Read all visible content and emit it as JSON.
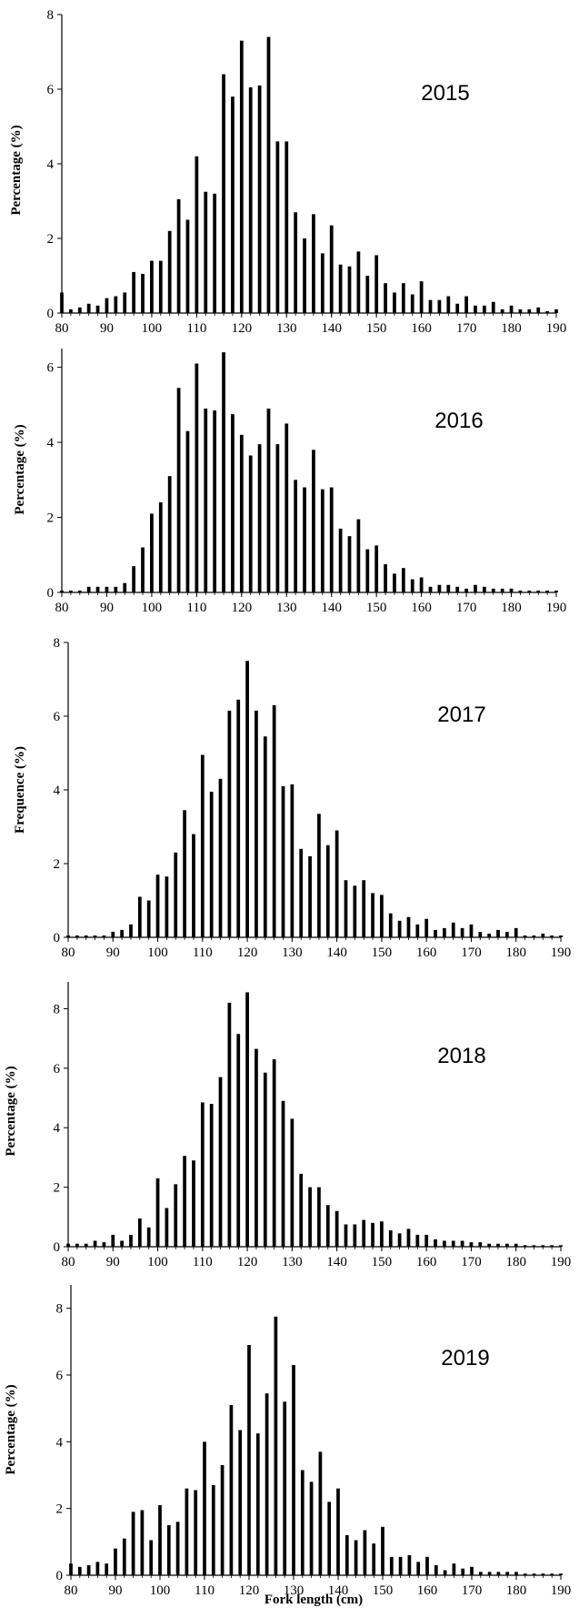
{
  "chart_data": [
    {
      "type": "bar",
      "annotation": "2015",
      "ylabel": "Percentage (%)",
      "xlabel": "",
      "xlim": [
        80,
        190
      ],
      "ylim": [
        0,
        8
      ],
      "x_ticks": [
        80,
        90,
        100,
        110,
        120,
        130,
        140,
        150,
        160,
        170,
        180,
        190
      ],
      "y_ticks": [
        0,
        2,
        4,
        6,
        8
      ],
      "x": [
        80,
        82,
        84,
        86,
        88,
        90,
        92,
        94,
        96,
        98,
        100,
        102,
        104,
        106,
        108,
        110,
        112,
        114,
        116,
        118,
        120,
        122,
        124,
        126,
        128,
        130,
        132,
        134,
        136,
        138,
        140,
        142,
        144,
        146,
        148,
        150,
        152,
        154,
        156,
        158,
        160,
        162,
        164,
        166,
        168,
        170,
        172,
        174,
        176,
        178,
        180,
        182,
        184,
        186,
        188,
        190
      ],
      "values": [
        0.55,
        0.1,
        0.15,
        0.25,
        0.2,
        0.4,
        0.45,
        0.55,
        1.1,
        1.05,
        1.4,
        1.4,
        2.2,
        3.05,
        2.5,
        4.2,
        3.25,
        3.2,
        6.4,
        5.8,
        7.3,
        6.05,
        6.1,
        7.4,
        4.6,
        4.6,
        2.7,
        2.0,
        2.65,
        1.6,
        2.35,
        1.3,
        1.25,
        1.65,
        1.0,
        1.55,
        0.8,
        0.55,
        0.8,
        0.5,
        0.85,
        0.35,
        0.35,
        0.45,
        0.25,
        0.45,
        0.2,
        0.2,
        0.3,
        0.1,
        0.2,
        0.1,
        0.1,
        0.15,
        0.05,
        0.1
      ],
      "grid": false
    },
    {
      "type": "bar",
      "annotation": "2016",
      "ylabel": "Percentage (%)",
      "xlabel": "",
      "xlim": [
        80,
        190
      ],
      "ylim": [
        0,
        6.5
      ],
      "x_ticks": [
        80,
        90,
        100,
        110,
        120,
        130,
        140,
        150,
        160,
        170,
        180,
        190
      ],
      "y_ticks": [
        0,
        2,
        4,
        6
      ],
      "x": [
        80,
        82,
        84,
        86,
        88,
        90,
        92,
        94,
        96,
        98,
        100,
        102,
        104,
        106,
        108,
        110,
        112,
        114,
        116,
        118,
        120,
        122,
        124,
        126,
        128,
        130,
        132,
        134,
        136,
        138,
        140,
        142,
        144,
        146,
        148,
        150,
        152,
        154,
        156,
        158,
        160,
        162,
        164,
        166,
        168,
        170,
        172,
        174,
        176,
        178,
        180,
        182,
        184,
        186,
        188,
        190
      ],
      "values": [
        0.05,
        0.05,
        0.05,
        0.15,
        0.15,
        0.15,
        0.15,
        0.25,
        0.7,
        1.2,
        2.1,
        2.4,
        3.1,
        5.45,
        4.3,
        6.1,
        4.9,
        4.85,
        6.4,
        4.75,
        4.2,
        3.65,
        3.95,
        4.9,
        3.95,
        4.5,
        3.0,
        2.8,
        3.8,
        2.75,
        2.8,
        1.7,
        1.5,
        1.95,
        1.15,
        1.25,
        0.75,
        0.5,
        0.65,
        0.35,
        0.4,
        0.15,
        0.2,
        0.2,
        0.15,
        0.1,
        0.2,
        0.15,
        0.1,
        0.1,
        0.1,
        0.05,
        0.05,
        0.05,
        0.05,
        0.05
      ],
      "grid": false
    },
    {
      "type": "bar",
      "annotation": "2017",
      "ylabel": "Frequence (%)",
      "xlabel": "",
      "xlim": [
        80,
        190
      ],
      "ylim": [
        0,
        8
      ],
      "x_ticks": [
        80,
        90,
        100,
        110,
        120,
        130,
        140,
        150,
        160,
        170,
        180,
        190
      ],
      "y_ticks": [
        0,
        2,
        4,
        6,
        8
      ],
      "x": [
        80,
        82,
        84,
        86,
        88,
        90,
        92,
        94,
        96,
        98,
        100,
        102,
        104,
        106,
        108,
        110,
        112,
        114,
        116,
        118,
        120,
        122,
        124,
        126,
        128,
        130,
        132,
        134,
        136,
        138,
        140,
        142,
        144,
        146,
        148,
        150,
        152,
        154,
        156,
        158,
        160,
        162,
        164,
        166,
        168,
        170,
        172,
        174,
        176,
        178,
        180,
        182,
        184,
        186,
        188,
        190
      ],
      "values": [
        0.05,
        0.05,
        0.05,
        0.05,
        0.05,
        0.15,
        0.2,
        0.35,
        1.1,
        1.0,
        1.7,
        1.65,
        2.3,
        3.45,
        2.8,
        4.95,
        3.95,
        4.3,
        6.15,
        6.45,
        7.5,
        6.15,
        5.45,
        6.3,
        4.1,
        4.15,
        2.4,
        2.2,
        3.35,
        2.5,
        2.9,
        1.55,
        1.4,
        1.55,
        1.2,
        1.15,
        0.65,
        0.45,
        0.55,
        0.35,
        0.5,
        0.2,
        0.25,
        0.4,
        0.25,
        0.35,
        0.15,
        0.1,
        0.2,
        0.15,
        0.25,
        0.05,
        0.05,
        0.1,
        0.05,
        0.05
      ],
      "grid": false
    },
    {
      "type": "bar",
      "annotation": "2018",
      "ylabel": "Percentage (%)",
      "xlabel": "",
      "xlim": [
        80,
        190
      ],
      "ylim": [
        0,
        8.9
      ],
      "x_ticks": [
        80,
        90,
        100,
        110,
        120,
        130,
        140,
        150,
        160,
        170,
        180,
        190
      ],
      "y_ticks": [
        0,
        2,
        4,
        6,
        8
      ],
      "x": [
        80,
        82,
        84,
        86,
        88,
        90,
        92,
        94,
        96,
        98,
        100,
        102,
        104,
        106,
        108,
        110,
        112,
        114,
        116,
        118,
        120,
        122,
        124,
        126,
        128,
        130,
        132,
        134,
        136,
        138,
        140,
        142,
        144,
        146,
        148,
        150,
        152,
        154,
        156,
        158,
        160,
        162,
        164,
        166,
        168,
        170,
        172,
        174,
        176,
        178,
        180,
        182,
        184,
        186,
        188,
        190
      ],
      "values": [
        0.1,
        0.1,
        0.1,
        0.2,
        0.15,
        0.4,
        0.2,
        0.4,
        0.95,
        0.65,
        2.3,
        1.3,
        2.1,
        3.05,
        2.9,
        4.85,
        4.8,
        5.7,
        8.2,
        7.15,
        8.55,
        6.65,
        5.85,
        6.3,
        4.9,
        4.3,
        2.45,
        2.0,
        2.0,
        1.4,
        1.2,
        0.75,
        0.75,
        0.9,
        0.8,
        0.85,
        0.55,
        0.45,
        0.6,
        0.4,
        0.4,
        0.25,
        0.2,
        0.2,
        0.2,
        0.15,
        0.15,
        0.1,
        0.1,
        0.1,
        0.1,
        0.05,
        0.05,
        0.05,
        0.05,
        0.05
      ],
      "grid": false
    },
    {
      "type": "bar",
      "annotation": "2019",
      "ylabel": "Percentage (%)",
      "xlabel": "Fork length (cm)",
      "xlim": [
        80,
        190
      ],
      "ylim": [
        0,
        8.7
      ],
      "x_ticks": [
        80,
        90,
        100,
        110,
        120,
        130,
        140,
        150,
        160,
        170,
        180,
        190
      ],
      "y_ticks": [
        0,
        2,
        4,
        6,
        8
      ],
      "x": [
        80,
        82,
        84,
        86,
        88,
        90,
        92,
        94,
        96,
        98,
        100,
        102,
        104,
        106,
        108,
        110,
        112,
        114,
        116,
        118,
        120,
        122,
        124,
        126,
        128,
        130,
        132,
        134,
        136,
        138,
        140,
        142,
        144,
        146,
        148,
        150,
        152,
        154,
        156,
        158,
        160,
        162,
        164,
        166,
        168,
        170,
        172,
        174,
        176,
        178,
        180,
        182,
        184,
        186,
        188,
        190
      ],
      "values": [
        0.35,
        0.25,
        0.3,
        0.4,
        0.35,
        0.8,
        1.1,
        1.9,
        1.95,
        1.05,
        2.1,
        1.5,
        1.6,
        2.6,
        2.55,
        4.0,
        2.7,
        3.3,
        5.1,
        4.35,
        6.9,
        4.25,
        5.45,
        7.75,
        5.2,
        6.3,
        3.15,
        2.8,
        3.7,
        2.2,
        2.6,
        1.2,
        1.05,
        1.35,
        0.95,
        1.45,
        0.55,
        0.55,
        0.6,
        0.4,
        0.55,
        0.3,
        0.15,
        0.35,
        0.2,
        0.25,
        0.1,
        0.1,
        0.1,
        0.1,
        0.1,
        0.05,
        0.05,
        0.05,
        0.05,
        0.05
      ],
      "grid": false
    }
  ]
}
